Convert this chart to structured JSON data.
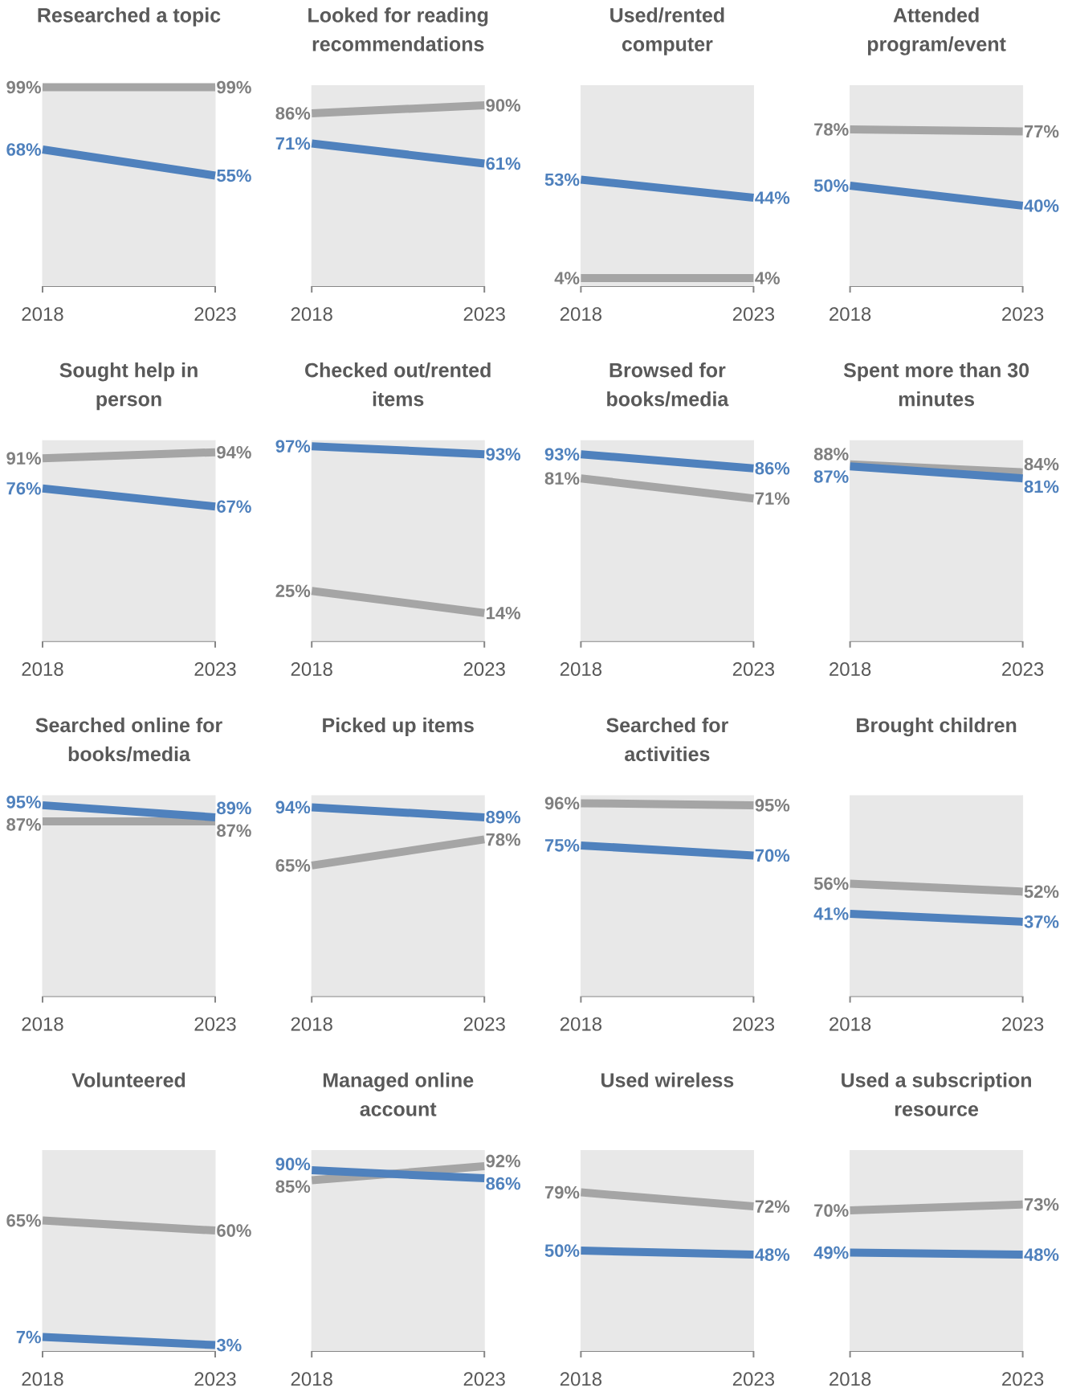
{
  "chart_data": [
    {
      "type": "line",
      "title": "Researched a topic",
      "categories": [
        "2018",
        "2023"
      ],
      "ylim": [
        0,
        100
      ],
      "tick_labels": "x",
      "bands": [
        {
          "axis": "y",
          "from": 0,
          "to": 100,
          "color": "#e8e8e8"
        }
      ],
      "series": [
        {
          "color": "#a5a5a5",
          "values": [
            99,
            99
          ],
          "value_labels": [
            "99%",
            "99%"
          ]
        },
        {
          "color": "#4f81bd",
          "values": [
            68,
            55
          ],
          "value_labels": [
            "68%",
            "55%"
          ]
        }
      ]
    },
    {
      "type": "line",
      "title": "Looked for reading recommendations",
      "categories": [
        "2018",
        "2023"
      ],
      "ylim": [
        0,
        100
      ],
      "tick_labels": "x",
      "bands": [
        {
          "axis": "y",
          "from": 0,
          "to": 100,
          "color": "#e8e8e8"
        }
      ],
      "series": [
        {
          "color": "#a5a5a5",
          "values": [
            86,
            90
          ],
          "value_labels": [
            "86%",
            "90%"
          ]
        },
        {
          "color": "#4f81bd",
          "values": [
            71,
            61
          ],
          "value_labels": [
            "71%",
            "61%"
          ]
        }
      ]
    },
    {
      "type": "line",
      "title": "Used/rented computer",
      "categories": [
        "2018",
        "2023"
      ],
      "ylim": [
        0,
        100
      ],
      "tick_labels": "x",
      "bands": [
        {
          "axis": "y",
          "from": 0,
          "to": 100,
          "color": "#e8e8e8"
        }
      ],
      "series": [
        {
          "color": "#a5a5a5",
          "values": [
            4,
            4
          ],
          "value_labels": [
            "4%",
            "4%"
          ]
        },
        {
          "color": "#4f81bd",
          "values": [
            53,
            44
          ],
          "value_labels": [
            "53%",
            "44%"
          ]
        }
      ]
    },
    {
      "type": "line",
      "title": "Attended program/event",
      "categories": [
        "2018",
        "2023"
      ],
      "ylim": [
        0,
        100
      ],
      "tick_labels": "x",
      "bands": [
        {
          "axis": "y",
          "from": 0,
          "to": 100,
          "color": "#e8e8e8"
        }
      ],
      "series": [
        {
          "color": "#a5a5a5",
          "values": [
            78,
            77
          ],
          "value_labels": [
            "78%",
            "77%"
          ]
        },
        {
          "color": "#4f81bd",
          "values": [
            50,
            40
          ],
          "value_labels": [
            "50%",
            "40%"
          ]
        }
      ]
    },
    {
      "type": "line",
      "title": "Sought help in person",
      "categories": [
        "2018",
        "2023"
      ],
      "ylim": [
        0,
        100
      ],
      "tick_labels": "x",
      "bands": [
        {
          "axis": "y",
          "from": 0,
          "to": 100,
          "color": "#e8e8e8"
        }
      ],
      "series": [
        {
          "color": "#a5a5a5",
          "values": [
            91,
            94
          ],
          "value_labels": [
            "91%",
            "94%"
          ]
        },
        {
          "color": "#4f81bd",
          "values": [
            76,
            67
          ],
          "value_labels": [
            "76%",
            "67%"
          ]
        }
      ]
    },
    {
      "type": "line",
      "title": "Checked out/rented items",
      "categories": [
        "2018",
        "2023"
      ],
      "ylim": [
        0,
        100
      ],
      "tick_labels": "x",
      "bands": [
        {
          "axis": "y",
          "from": 0,
          "to": 100,
          "color": "#e8e8e8"
        }
      ],
      "series": [
        {
          "color": "#a5a5a5",
          "values": [
            25,
            14
          ],
          "value_labels": [
            "25%",
            "14%"
          ]
        },
        {
          "color": "#4f81bd",
          "values": [
            97,
            93
          ],
          "value_labels": [
            "97%",
            "93%"
          ]
        }
      ]
    },
    {
      "type": "line",
      "title": "Browsed for books/media",
      "categories": [
        "2018",
        "2023"
      ],
      "ylim": [
        0,
        100
      ],
      "tick_labels": "x",
      "bands": [
        {
          "axis": "y",
          "from": 0,
          "to": 100,
          "color": "#e8e8e8"
        }
      ],
      "series": [
        {
          "color": "#a5a5a5",
          "values": [
            81,
            71
          ],
          "value_labels": [
            "81%",
            "71%"
          ]
        },
        {
          "color": "#4f81bd",
          "values": [
            93,
            86
          ],
          "value_labels": [
            "93%",
            "86%"
          ]
        }
      ]
    },
    {
      "type": "line",
      "title": "Spent more than 30 minutes",
      "categories": [
        "2018",
        "2023"
      ],
      "ylim": [
        0,
        100
      ],
      "tick_labels": "x",
      "bands": [
        {
          "axis": "y",
          "from": 0,
          "to": 100,
          "color": "#e8e8e8"
        }
      ],
      "series": [
        {
          "color": "#a5a5a5",
          "values": [
            88,
            84
          ],
          "value_labels": [
            "88%",
            "84%"
          ]
        },
        {
          "color": "#4f81bd",
          "values": [
            87,
            81
          ],
          "value_labels": [
            "87%",
            "81%"
          ]
        }
      ]
    },
    {
      "type": "line",
      "title": "Searched online for books/media",
      "categories": [
        "2018",
        "2023"
      ],
      "ylim": [
        0,
        100
      ],
      "tick_labels": "x",
      "bands": [
        {
          "axis": "y",
          "from": 0,
          "to": 100,
          "color": "#e8e8e8"
        }
      ],
      "series": [
        {
          "color": "#a5a5a5",
          "values": [
            87,
            87
          ],
          "value_labels": [
            "87%",
            "87%"
          ]
        },
        {
          "color": "#4f81bd",
          "values": [
            95,
            89
          ],
          "value_labels": [
            "95%",
            "89%"
          ]
        }
      ]
    },
    {
      "type": "line",
      "title": "Picked up items",
      "categories": [
        "2018",
        "2023"
      ],
      "ylim": [
        0,
        100
      ],
      "tick_labels": "x",
      "bands": [
        {
          "axis": "y",
          "from": 0,
          "to": 100,
          "color": "#e8e8e8"
        }
      ],
      "series": [
        {
          "color": "#a5a5a5",
          "values": [
            65,
            78
          ],
          "value_labels": [
            "65%",
            "78%"
          ]
        },
        {
          "color": "#4f81bd",
          "values": [
            94,
            89
          ],
          "value_labels": [
            "94%",
            "89%"
          ]
        }
      ]
    },
    {
      "type": "line",
      "title": "Searched for activities",
      "categories": [
        "2018",
        "2023"
      ],
      "ylim": [
        0,
        100
      ],
      "tick_labels": "x",
      "bands": [
        {
          "axis": "y",
          "from": 0,
          "to": 100,
          "color": "#e8e8e8"
        }
      ],
      "series": [
        {
          "color": "#a5a5a5",
          "values": [
            96,
            95
          ],
          "value_labels": [
            "96%",
            "95%"
          ]
        },
        {
          "color": "#4f81bd",
          "values": [
            75,
            70
          ],
          "value_labels": [
            "75%",
            "70%"
          ]
        }
      ]
    },
    {
      "type": "line",
      "title": "Brought children",
      "categories": [
        "2018",
        "2023"
      ],
      "ylim": [
        0,
        100
      ],
      "tick_labels": "x",
      "bands": [
        {
          "axis": "y",
          "from": 0,
          "to": 100,
          "color": "#e8e8e8"
        }
      ],
      "series": [
        {
          "color": "#a5a5a5",
          "values": [
            56,
            52
          ],
          "value_labels": [
            "56%",
            "52%"
          ]
        },
        {
          "color": "#4f81bd",
          "values": [
            41,
            37
          ],
          "value_labels": [
            "41%",
            "37%"
          ]
        }
      ]
    },
    {
      "type": "line",
      "title": "Volunteered",
      "categories": [
        "2018",
        "2023"
      ],
      "ylim": [
        0,
        100
      ],
      "tick_labels": "x",
      "bands": [
        {
          "axis": "y",
          "from": 0,
          "to": 100,
          "color": "#e8e8e8"
        }
      ],
      "series": [
        {
          "color": "#a5a5a5",
          "values": [
            65,
            60
          ],
          "value_labels": [
            "65%",
            "60%"
          ]
        },
        {
          "color": "#4f81bd",
          "values": [
            7,
            3
          ],
          "value_labels": [
            "7%",
            "3%"
          ]
        }
      ]
    },
    {
      "type": "line",
      "title": "Managed online account",
      "categories": [
        "2018",
        "2023"
      ],
      "ylim": [
        0,
        100
      ],
      "tick_labels": "x",
      "bands": [
        {
          "axis": "y",
          "from": 0,
          "to": 100,
          "color": "#e8e8e8"
        }
      ],
      "series": [
        {
          "color": "#a5a5a5",
          "values": [
            85,
            92
          ],
          "value_labels": [
            "85%",
            "92%"
          ]
        },
        {
          "color": "#4f81bd",
          "values": [
            90,
            86
          ],
          "value_labels": [
            "90%",
            "86%"
          ]
        }
      ]
    },
    {
      "type": "line",
      "title": "Used wireless",
      "categories": [
        "2018",
        "2023"
      ],
      "ylim": [
        0,
        100
      ],
      "tick_labels": "x",
      "bands": [
        {
          "axis": "y",
          "from": 0,
          "to": 100,
          "color": "#e8e8e8"
        }
      ],
      "series": [
        {
          "color": "#a5a5a5",
          "values": [
            79,
            72
          ],
          "value_labels": [
            "79%",
            "72%"
          ]
        },
        {
          "color": "#4f81bd",
          "values": [
            50,
            48
          ],
          "value_labels": [
            "50%",
            "48%"
          ]
        }
      ]
    },
    {
      "type": "line",
      "title": "Used a subscription resource",
      "categories": [
        "2018",
        "2023"
      ],
      "ylim": [
        0,
        100
      ],
      "tick_labels": "x",
      "bands": [
        {
          "axis": "y",
          "from": 0,
          "to": 100,
          "color": "#e8e8e8"
        }
      ],
      "series": [
        {
          "color": "#a5a5a5",
          "values": [
            70,
            73
          ],
          "value_labels": [
            "70%",
            "73%"
          ]
        },
        {
          "color": "#4f81bd",
          "values": [
            49,
            48
          ],
          "value_labels": [
            "49%",
            "48%"
          ]
        }
      ]
    }
  ]
}
